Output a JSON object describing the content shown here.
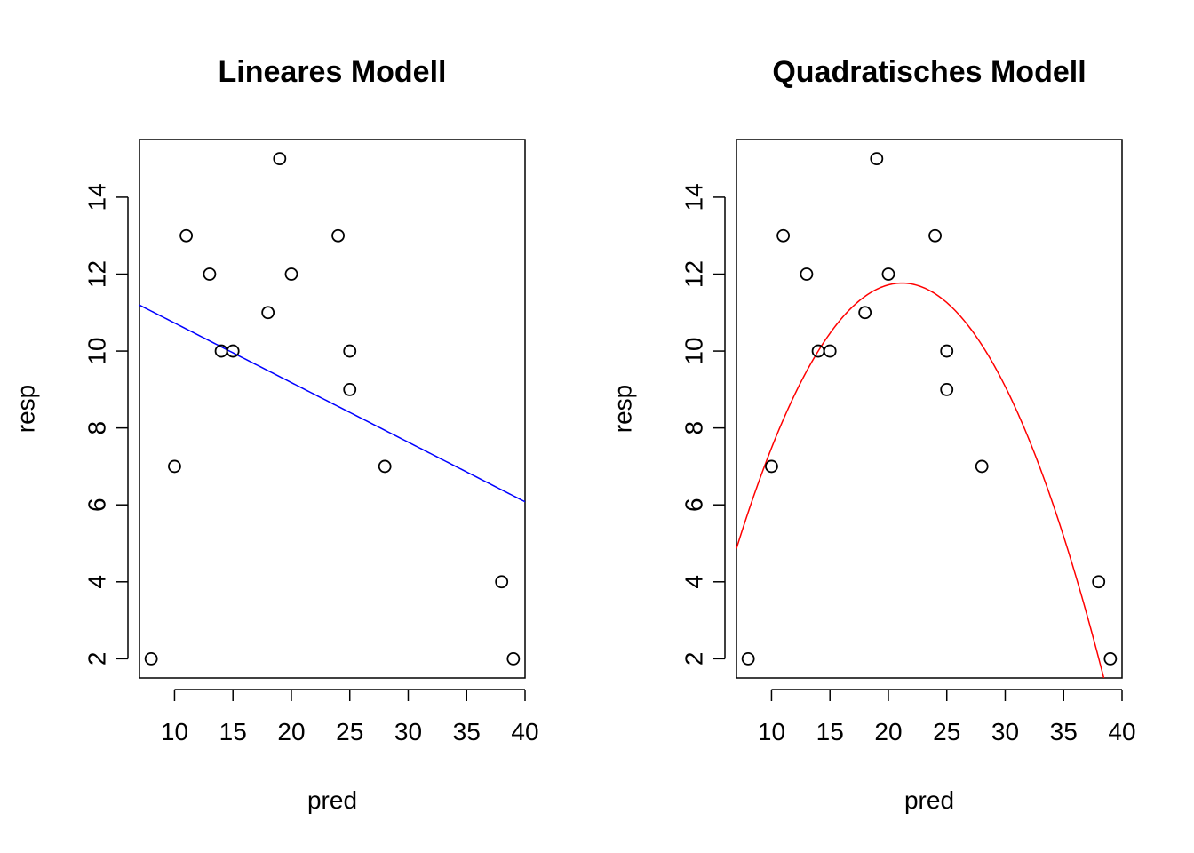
{
  "chart_data": [
    {
      "type": "scatter",
      "title": "Lineares Modell",
      "xlabel": "pred",
      "ylabel": "resp",
      "xlim": [
        7,
        40
      ],
      "ylim": [
        1.5,
        15.5
      ],
      "xticks": [
        10,
        15,
        20,
        25,
        30,
        35,
        40
      ],
      "yticks": [
        2,
        4,
        6,
        8,
        10,
        12,
        14
      ],
      "grid": false,
      "points": {
        "x": [
          8,
          10,
          11,
          13,
          14,
          15,
          18,
          19,
          20,
          24,
          25,
          25,
          28,
          38,
          39
        ],
        "y": [
          2,
          7,
          13,
          12,
          10,
          10,
          11,
          15,
          12,
          13,
          10,
          9,
          7,
          4,
          2
        ]
      },
      "fit": {
        "kind": "linear",
        "coef": [
          12.28,
          -0.155
        ],
        "color": "#0000ff"
      }
    },
    {
      "type": "scatter",
      "title": "Quadratisches  Modell",
      "xlabel": "pred",
      "ylabel": "resp",
      "xlim": [
        7,
        40
      ],
      "ylim": [
        1.5,
        15.5
      ],
      "xticks": [
        10,
        15,
        20,
        25,
        30,
        35,
        40
      ],
      "yticks": [
        2,
        4,
        6,
        8,
        10,
        12,
        14
      ],
      "grid": false,
      "points": {
        "x": [
          8,
          10,
          11,
          13,
          14,
          15,
          18,
          19,
          20,
          24,
          25,
          25,
          28,
          38,
          39
        ],
        "y": [
          2,
          7,
          13,
          12,
          10,
          10,
          11,
          15,
          12,
          13,
          10,
          9,
          7,
          4,
          2
        ]
      },
      "fit": {
        "kind": "quadratic",
        "coef": [
          -3.64,
          1.456,
          -0.0344
        ],
        "color": "#ff0000"
      }
    }
  ]
}
